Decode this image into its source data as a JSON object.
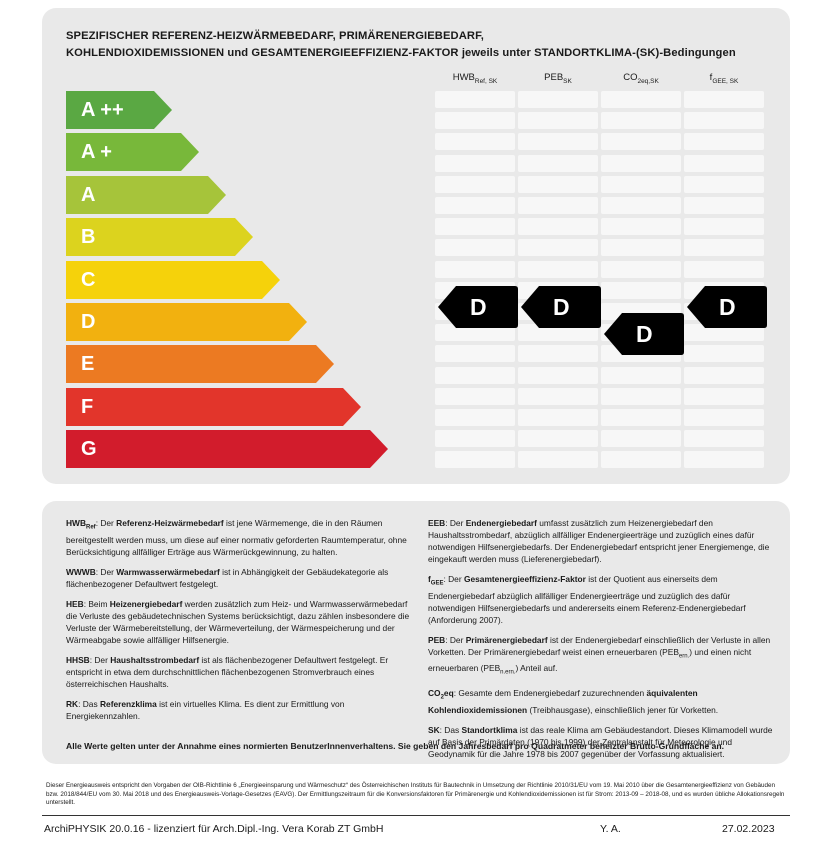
{
  "title_line1": "SPEZIFISCHER REFERENZ-HEIZWÄRMEBEDARF, PRIMÄRENERGIEBEDARF,",
  "title_line2": "KOHLENDIOXIDEMISSIONEN und GESAMTENERGIEEFFIZIENZ-FAKTOR jeweils unter STANDORTKLIMA-(SK)-Bedingungen",
  "columns": [
    {
      "main": "HWB",
      "sub": "Ref, SK"
    },
    {
      "main": "PEB",
      "sub": "SK"
    },
    {
      "main": "CO",
      "mid": "2eq,SK",
      "sub": ""
    },
    {
      "main": "f",
      "sub": "GEE, SK"
    }
  ],
  "classes": [
    {
      "label": "A ++",
      "color": "#5aa843"
    },
    {
      "label": "A +",
      "color": "#78b83a"
    },
    {
      "label": "A",
      "color": "#a6c43a"
    },
    {
      "label": "B",
      "color": "#dcd31e"
    },
    {
      "label": "C",
      "color": "#f5d20b"
    },
    {
      "label": "D",
      "color": "#f2b10f"
    },
    {
      "label": "E",
      "color": "#ec7a22"
    },
    {
      "label": "F",
      "color": "#e2352b"
    },
    {
      "label": "G",
      "color": "#d21c2c"
    }
  ],
  "ratings": [
    {
      "column": "HWB",
      "value": "D"
    },
    {
      "column": "PEB",
      "value": "D"
    },
    {
      "column": "CO2eq",
      "value": "D"
    },
    {
      "column": "fGEE",
      "value": "D"
    }
  ],
  "legend": {
    "hwb_term": "HWB",
    "hwb_sub": "Ref",
    "hwb_bold": "Referenz-Heizwärmebedarf",
    "hwb_text1": ": Der ",
    "hwb_text2": " ist jene Wärmemenge, die in den Räumen bereitgestellt werden muss, um diese auf einer normativ geforderten Raumtemperatur, ohne Berücksichtigung allfälliger Erträge aus Wärmerückgewinnung, zu halten.",
    "wwwb_term": "WWWB",
    "wwwb_bold": "Warmwasserwärmebedarf",
    "wwwb_text": " ist in Abhängigkeit der Gebäudekategorie als flächenbezogener Defaultwert festgelegt.",
    "heb_term": "HEB",
    "heb_bold": "Heizenergiebedarf",
    "heb_text": " werden zusätzlich zum Heiz- und Warmwasserwärmebedarf die Verluste des gebäudetechnischen Systems berücksichtigt, dazu zählen insbesondere die Verluste der Wärmebereitstellung, der Wärmeverteilung, der Wärmespeicherung und der Wärmeabgabe sowie allfälliger Hilfsenergie.",
    "hhsb_term": "HHSB",
    "hhsb_bold": "Haushaltsstrombedarf",
    "hhsb_text": " ist als flächenbezogener Defaultwert festgelegt. Er entspricht in etwa dem durchschnittlichen flächenbezogenen Stromverbrauch eines österreichischen Haushalts.",
    "rk_term": "RK",
    "rk_bold": "Referenzklima",
    "rk_text": " ist ein virtuelles Klima. Es dient zur Ermittlung von Energiekennzahlen.",
    "eeb_term": "EEB",
    "eeb_bold": "Endenergiebedarf",
    "eeb_text": " umfasst zusätzlich zum Heizenergiebedarf den Haushaltsstrombedarf, abzüglich allfälliger Endenergieerträge und zuzüglich eines dafür notwendigen Hilfsenergiebedarfs. Der Endenergiebedarf entspricht jener Energiemenge, die eingekauft werden muss (Lieferenergiebedarf).",
    "fgee_term": "f",
    "fgee_sub": "GEE",
    "fgee_bold": "Gesamtenergieeffizienz-Faktor",
    "fgee_text": " ist der Quotient aus einerseits dem Endenergiebedarf abzüglich allfälliger Endenergieerträge und zuzüglich des dafür notwendigen Hilfsenergiebedarfs und andererseits einem Referenz-Endenergiebedarf (Anforderung 2007).",
    "peb_term": "PEB",
    "peb_bold": "Primärenergiebedarf",
    "peb_text1": " ist der Endenergiebedarf einschließlich der Verluste in allen Vorketten. Der Primärenergiebedarf weist einen erneuerbaren (PEB",
    "peb_sub1": "ern.",
    "peb_text2": ") und einen nicht erneuerbaren (PEB",
    "peb_sub2": "n.ern.",
    "peb_text3": ") Anteil auf.",
    "co2_term": "CO",
    "co2_sub": "2",
    "co2_term2": "eq",
    "co2_text1": ": Gesamte dem Endenergiebedarf zuzurechnenden ",
    "co2_bold": "äquivalenten Kohlendioxidemissionen",
    "co2_text2": " (Treibhausgase), einschließlich jener für Vorketten.",
    "sk_term": "SK",
    "sk_bold": "Standortklima",
    "sk_text": " ist das reale Klima am Gebäudestandort. Dieses Klimamodell wurde auf Basis der Primärdaten (1970 bis 1999) der Zentralanstalt für Meteorologie und Geodynamik für die Jahre 1978 bis 2007 gegenüber der Vorfassung aktualisiert.",
    "note": "Alle Werte gelten unter der Annahme eines normierten BenutzerInnenverhaltens. Sie geben den Jahresbedarf pro Quadratmeter beheizter Brutto-Grundfläche an."
  },
  "fineprint": "Dieser Energieausweis entspricht den Vorgaben der OIB-Richtlinie 6 „Energieeinsparung und Wärmeschutz“ des Österreichischen Instituts für Bautechnik in Umsetzung der Richtlinie 2010/31/EU vom 19. Mai 2010 über die Gesamtenergieeffizienz von Gebäuden bzw. 2018/844/EU vom 30. Mai 2018 und des Energieausweis-Vorlage-Gesetzes (EAVG). Der Ermittlungszeitraum für die Konversionsfaktoren für Primärenergie und Kohlendioxidemissionen ist für Strom: 2013-09 – 2018-08, und es wurden übliche Allokationsregeln unterstellt.",
  "footer": {
    "software": "ArchiPHYSIK 20.0.16 - lizenziert für Arch.Dipl.-Ing. Vera Korab ZT GmbH",
    "initials": "Y. A.",
    "date": "27.02.2023"
  }
}
